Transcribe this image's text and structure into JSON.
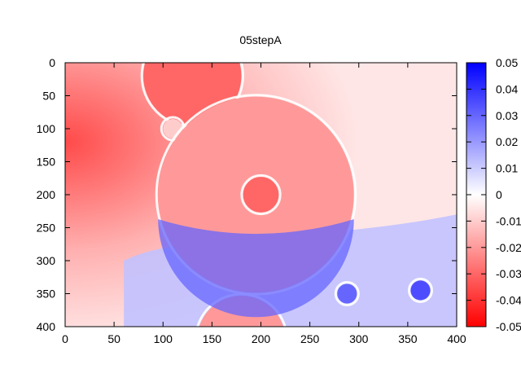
{
  "chart_data": {
    "type": "heatmap",
    "title": "05stepA",
    "xlabel": "",
    "ylabel": "",
    "xlim": [
      0,
      400
    ],
    "ylim": [
      400,
      0
    ],
    "x_ticks": [
      "0",
      "50",
      "100",
      "150",
      "200",
      "250",
      "300",
      "350",
      "400"
    ],
    "y_ticks": [
      "0",
      "50",
      "100",
      "150",
      "200",
      "250",
      "300",
      "350",
      "400"
    ],
    "colorbar": {
      "range": [
        -0.05,
        0.05
      ],
      "ticks": [
        "0.05",
        "0.04",
        "0.03",
        "0.02",
        "0.01",
        "0",
        "-0.01",
        "-0.02",
        "-0.03",
        "-0.04",
        "-0.05"
      ],
      "colors": {
        "low": "#ff0000",
        "mid": "#ffffff",
        "high": "#0000ff"
      }
    },
    "grid": false,
    "features": [
      {
        "shape": "background-red-left",
        "cx": 0,
        "cy": 120,
        "r": 180,
        "value": -0.025
      },
      {
        "shape": "blue-lower-region",
        "value": 0.012
      },
      {
        "shape": "circle",
        "cx": 130,
        "cy": 20,
        "r": 50,
        "value": -0.03
      },
      {
        "shape": "circle",
        "cx": 110,
        "cy": 100,
        "r": 10,
        "value": -0.01
      },
      {
        "shape": "circle",
        "cx": 195,
        "cy": 200,
        "r": 100,
        "value": -0.02
      },
      {
        "shape": "circle",
        "cx": 200,
        "cy": 200,
        "r": 18,
        "value": -0.03
      },
      {
        "shape": "circle",
        "cx": 288,
        "cy": 350,
        "r": 10,
        "value": 0.03
      },
      {
        "shape": "circle",
        "cx": 363,
        "cy": 345,
        "r": 10,
        "value": 0.035
      },
      {
        "shape": "circle",
        "cx": 180,
        "cy": 420,
        "r": 45,
        "value": -0.02
      }
    ]
  }
}
